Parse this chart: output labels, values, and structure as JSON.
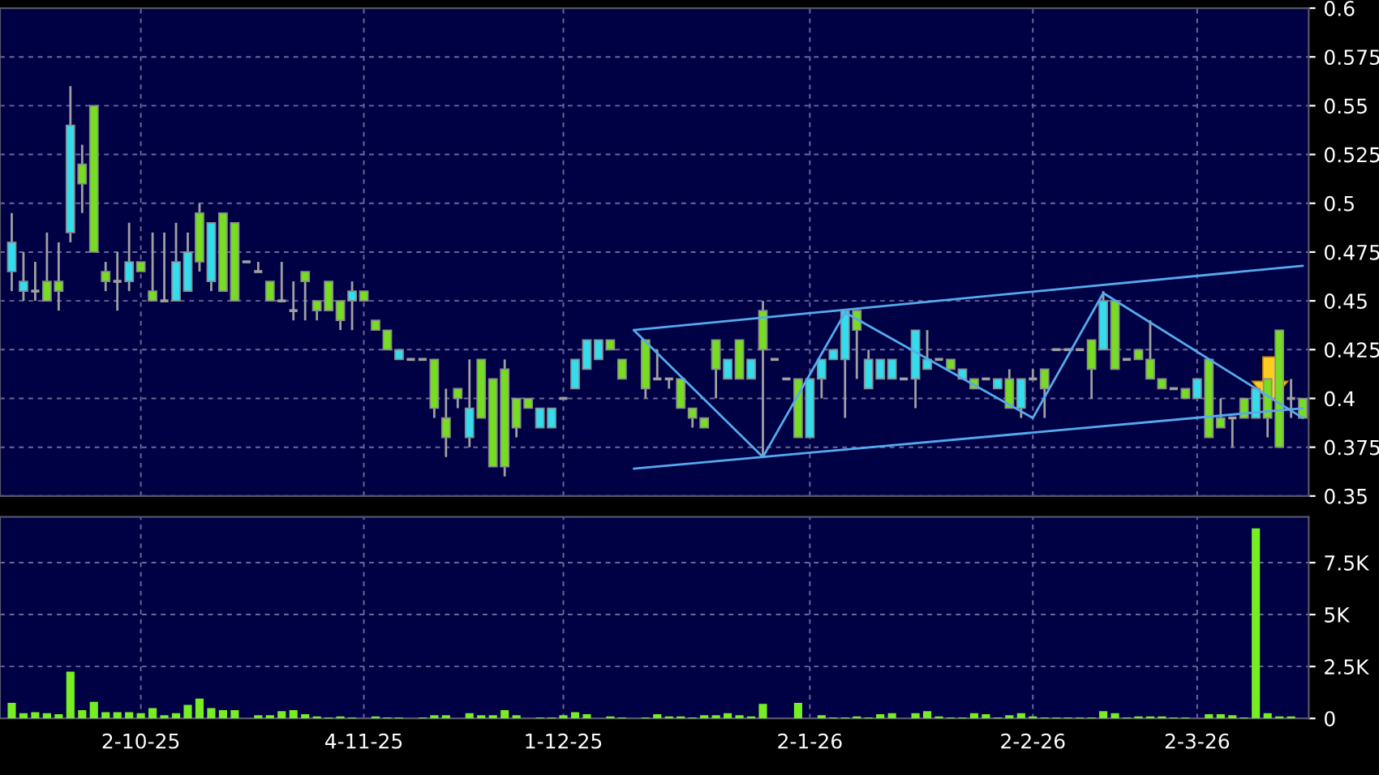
{
  "chart_data": [
    {
      "type": "candlestick",
      "categories": [
        null,
        null,
        null,
        null,
        null,
        null,
        null,
        null,
        null,
        null,
        null,
        null,
        null,
        null,
        null,
        null,
        null,
        null,
        null,
        null,
        null,
        null,
        null,
        null,
        null,
        null,
        null,
        null,
        null,
        null,
        null,
        null,
        null,
        null,
        null,
        null,
        null,
        null,
        null,
        null,
        null,
        null,
        null,
        null,
        null,
        null,
        null,
        null,
        null,
        null,
        null,
        null,
        null,
        null,
        null,
        null,
        null,
        null,
        null,
        null,
        null,
        null,
        null,
        null,
        null,
        null,
        null,
        null,
        null,
        null,
        null,
        null,
        null,
        null,
        null,
        null,
        null,
        null,
        null,
        null,
        null,
        null,
        null,
        null,
        null,
        null,
        null,
        null,
        null,
        null,
        null,
        null,
        null,
        null,
        null,
        null,
        null,
        null,
        null,
        null,
        null,
        null,
        null,
        null,
        null,
        null,
        null,
        null,
        null,
        null,
        null
      ],
      "ohlc": [
        [
          0.465,
          0.495,
          0.455,
          0.48
        ],
        [
          0.455,
          0.475,
          0.45,
          0.46
        ],
        [
          0.455,
          0.47,
          0.45,
          0.455
        ],
        [
          0.46,
          0.485,
          0.45,
          0.45
        ],
        [
          0.46,
          0.48,
          0.445,
          0.455
        ],
        [
          0.485,
          0.56,
          0.48,
          0.54
        ],
        [
          0.52,
          0.53,
          0.495,
          0.51
        ],
        [
          0.55,
          0.55,
          0.475,
          0.475
        ],
        [
          0.465,
          0.47,
          0.455,
          0.46
        ],
        [
          0.46,
          0.475,
          0.445,
          0.46
        ],
        [
          0.46,
          0.49,
          0.455,
          0.47
        ],
        [
          0.47,
          0.47,
          0.465,
          0.465
        ],
        [
          0.455,
          0.485,
          0.45,
          0.45
        ],
        [
          0.45,
          0.485,
          0.45,
          0.45
        ],
        [
          0.45,
          0.49,
          0.45,
          0.47
        ],
        [
          0.455,
          0.485,
          0.455,
          0.475
        ],
        [
          0.495,
          0.5,
          0.465,
          0.47
        ],
        [
          0.46,
          0.49,
          0.455,
          0.49
        ],
        [
          0.495,
          0.495,
          0.455,
          0.455
        ],
        [
          0.49,
          0.49,
          0.45,
          0.45
        ],
        [
          0.47,
          0.47,
          0.47,
          0.47
        ],
        [
          0.465,
          0.47,
          0.465,
          0.465
        ],
        [
          0.46,
          0.46,
          0.45,
          0.45
        ],
        [
          0.45,
          0.47,
          0.45,
          0.45
        ],
        [
          0.445,
          0.46,
          0.44,
          0.445
        ],
        [
          0.465,
          0.465,
          0.44,
          0.46
        ],
        [
          0.45,
          0.45,
          0.44,
          0.445
        ],
        [
          0.46,
          0.46,
          0.445,
          0.445
        ],
        [
          0.45,
          0.45,
          0.435,
          0.44
        ],
        [
          0.45,
          0.46,
          0.435,
          0.455
        ],
        [
          0.455,
          0.455,
          0.45,
          0.45
        ],
        [
          0.44,
          0.44,
          0.435,
          0.435
        ],
        [
          0.435,
          0.435,
          0.425,
          0.425
        ],
        [
          0.42,
          0.425,
          0.42,
          0.425
        ],
        [
          0.42,
          0.42,
          0.42,
          0.42
        ],
        [
          0.42,
          0.42,
          0.42,
          0.42
        ],
        [
          0.42,
          0.42,
          0.39,
          0.395
        ],
        [
          0.39,
          0.405,
          0.37,
          0.38
        ],
        [
          0.405,
          0.405,
          0.395,
          0.4
        ],
        [
          0.38,
          0.42,
          0.375,
          0.395
        ],
        [
          0.42,
          0.42,
          0.39,
          0.39
        ],
        [
          0.41,
          0.41,
          0.365,
          0.365
        ],
        [
          0.415,
          0.42,
          0.36,
          0.365
        ],
        [
          0.4,
          0.4,
          0.38,
          0.385
        ],
        [
          0.4,
          0.4,
          0.395,
          0.395
        ],
        [
          0.385,
          0.395,
          0.385,
          0.395
        ],
        [
          0.385,
          0.395,
          0.385,
          0.395
        ],
        [
          0.4,
          0.4,
          0.4,
          0.4
        ],
        [
          0.405,
          0.42,
          0.405,
          0.42
        ],
        [
          0.415,
          0.43,
          0.415,
          0.43
        ],
        [
          0.42,
          0.43,
          0.42,
          0.43
        ],
        [
          0.43,
          0.43,
          0.425,
          0.425
        ],
        [
          0.42,
          0.42,
          0.41,
          0.41
        ],
        null,
        [
          0.43,
          0.43,
          0.4,
          0.405
        ],
        [
          0.41,
          0.425,
          0.41,
          0.41
        ],
        [
          0.41,
          0.41,
          0.405,
          0.41
        ],
        [
          0.41,
          0.41,
          0.395,
          0.395
        ],
        [
          0.395,
          0.395,
          0.385,
          0.39
        ],
        [
          0.39,
          0.39,
          0.385,
          0.385
        ],
        [
          0.43,
          0.43,
          0.4,
          0.415
        ],
        [
          0.41,
          0.42,
          0.41,
          0.42
        ],
        [
          0.43,
          0.43,
          0.41,
          0.41
        ],
        [
          0.41,
          0.42,
          0.41,
          0.42
        ],
        [
          0.445,
          0.45,
          0.37,
          0.425
        ],
        [
          0.42,
          0.42,
          0.42,
          0.42
        ],
        [
          0.41,
          0.41,
          0.41,
          0.41
        ],
        [
          0.41,
          0.41,
          0.38,
          0.38
        ],
        [
          0.38,
          0.41,
          0.38,
          0.41
        ],
        [
          0.41,
          0.42,
          0.4,
          0.42
        ],
        [
          0.42,
          0.425,
          0.42,
          0.425
        ],
        [
          0.42,
          0.445,
          0.39,
          0.445
        ],
        [
          0.445,
          0.445,
          0.41,
          0.435
        ],
        [
          0.405,
          0.425,
          0.405,
          0.42
        ],
        [
          0.41,
          0.42,
          0.41,
          0.42
        ],
        [
          0.41,
          0.42,
          0.41,
          0.42
        ],
        [
          0.41,
          0.41,
          0.41,
          0.41
        ],
        [
          0.41,
          0.435,
          0.395,
          0.435
        ],
        [
          0.415,
          0.435,
          0.415,
          0.42
        ],
        [
          0.42,
          0.42,
          0.42,
          0.42
        ],
        [
          0.42,
          0.42,
          0.415,
          0.415
        ],
        [
          0.41,
          0.415,
          0.41,
          0.415
        ],
        [
          0.41,
          0.41,
          0.405,
          0.405
        ],
        [
          0.41,
          0.41,
          0.41,
          0.41
        ],
        [
          0.405,
          0.41,
          0.405,
          0.41
        ],
        [
          0.41,
          0.415,
          0.395,
          0.395
        ],
        [
          0.395,
          0.41,
          0.39,
          0.41
        ],
        [
          0.41,
          0.415,
          0.41,
          0.41
        ],
        [
          0.415,
          0.415,
          0.39,
          0.405
        ],
        [
          0.425,
          0.425,
          0.425,
          0.425
        ],
        [
          0.425,
          0.425,
          0.425,
          0.425
        ],
        [
          0.425,
          0.425,
          0.425,
          0.425
        ],
        [
          0.43,
          0.43,
          0.4,
          0.415
        ],
        [
          0.425,
          0.455,
          0.425,
          0.45
        ],
        [
          0.45,
          0.45,
          0.415,
          0.415
        ],
        [
          0.42,
          0.42,
          0.42,
          0.42
        ],
        [
          0.425,
          0.425,
          0.42,
          0.42
        ],
        [
          0.42,
          0.44,
          0.41,
          0.41
        ],
        [
          0.41,
          0.41,
          0.405,
          0.405
        ],
        [
          0.405,
          0.405,
          0.405,
          0.405
        ],
        [
          0.405,
          0.405,
          0.4,
          0.4
        ],
        [
          0.4,
          0.41,
          0.4,
          0.41
        ],
        [
          0.42,
          0.42,
          0.38,
          0.38
        ],
        [
          0.39,
          0.4,
          0.385,
          0.385
        ],
        [
          0.39,
          0.39,
          0.375,
          0.39
        ],
        [
          0.4,
          0.4,
          0.39,
          0.39
        ],
        [
          0.39,
          0.405,
          0.39,
          0.405
        ],
        [
          0.41,
          0.41,
          0.38,
          0.39
        ],
        [
          0.435,
          0.435,
          0.375,
          0.375
        ],
        [
          0.4,
          0.41,
          0.39,
          0.4
        ],
        [
          0.4,
          0.4,
          0.39,
          0.39
        ]
      ],
      "colors": [
        "#33ddee",
        "#33ddee",
        "#a0a0a0",
        "#77dd22",
        "#77dd22",
        "#33ddee",
        "#77dd22",
        "#77dd22",
        "#77dd22",
        "#a0a0a0",
        "#33ddee",
        "#77dd22",
        "#77dd22",
        "#a0a0a0",
        "#33ddee",
        "#33ddee",
        "#77dd22",
        "#33ddee",
        "#77dd22",
        "#77dd22",
        "#a0a0a0",
        "#a0a0a0",
        "#77dd22",
        "#a0a0a0",
        "#a0a0a0",
        "#77dd22",
        "#77dd22",
        "#77dd22",
        "#77dd22",
        "#33ddee",
        "#77dd22",
        "#77dd22",
        "#77dd22",
        "#33ddee",
        "#a0a0a0",
        "#a0a0a0",
        "#77dd22",
        "#77dd22",
        "#77dd22",
        "#33ddee",
        "#77dd22",
        "#77dd22",
        "#77dd22",
        "#77dd22",
        "#77dd22",
        "#33ddee",
        "#33ddee",
        "#a0a0a0",
        "#33ddee",
        "#33ddee",
        "#33ddee",
        "#77dd22",
        "#77dd22",
        null,
        "#77dd22",
        "#a0a0a0",
        "#a0a0a0",
        "#77dd22",
        "#77dd22",
        "#77dd22",
        "#77dd22",
        "#33ddee",
        "#77dd22",
        "#33ddee",
        "#77dd22",
        "#a0a0a0",
        "#a0a0a0",
        "#77dd22",
        "#33ddee",
        "#33ddee",
        "#33ddee",
        "#33ddee",
        "#77dd22",
        "#33ddee",
        "#33ddee",
        "#33ddee",
        "#a0a0a0",
        "#33ddee",
        "#33ddee",
        "#a0a0a0",
        "#77dd22",
        "#33ddee",
        "#77dd22",
        "#a0a0a0",
        "#33ddee",
        "#77dd22",
        "#33ddee",
        "#a0a0a0",
        "#77dd22",
        "#a0a0a0",
        "#a0a0a0",
        "#a0a0a0",
        "#77dd22",
        "#33ddee",
        "#77dd22",
        "#a0a0a0",
        "#77dd22",
        "#77dd22",
        "#77dd22",
        "#a0a0a0",
        "#77dd22",
        "#33ddee",
        "#77dd22",
        "#77dd22",
        "#a0a0a0",
        "#77dd22",
        "#33ddee",
        "#77dd22",
        "#77dd22",
        "#a0a0a0",
        "#77dd22"
      ],
      "series": [
        {
          "type": "line",
          "values": [
            null,
            null,
            null,
            null,
            null,
            null,
            null,
            null,
            null,
            null,
            null,
            null,
            null,
            null,
            null,
            null,
            null,
            null,
            null,
            null,
            null,
            null,
            null,
            null,
            null,
            null,
            null,
            null,
            null,
            null,
            null,
            null,
            null,
            null,
            null,
            null,
            null,
            null,
            null,
            null,
            null,
            null,
            null,
            null,
            null,
            null,
            null,
            null,
            null,
            null,
            null,
            null,
            null,
            0.435,
            null,
            null,
            null,
            null,
            null,
            null,
            null,
            null,
            null,
            null,
            null,
            null,
            null,
            null,
            null,
            null,
            null,
            null,
            null,
            null,
            null,
            null,
            null,
            null,
            null,
            null,
            null,
            null,
            null,
            null,
            null,
            null,
            null,
            null,
            null,
            null,
            null,
            null,
            null,
            null,
            null,
            null,
            null,
            null,
            null,
            null,
            null,
            null,
            null,
            null,
            null,
            null,
            null,
            null,
            null,
            null,
            0.468
          ],
          "color": "#55aaee"
        },
        {
          "type": "line",
          "values": [
            null,
            null,
            null,
            null,
            null,
            null,
            null,
            null,
            null,
            null,
            null,
            null,
            null,
            null,
            null,
            null,
            null,
            null,
            null,
            null,
            null,
            null,
            null,
            null,
            null,
            null,
            null,
            null,
            null,
            null,
            null,
            null,
            null,
            null,
            null,
            null,
            null,
            null,
            null,
            null,
            null,
            null,
            null,
            null,
            null,
            null,
            null,
            null,
            null,
            null,
            null,
            null,
            null,
            0.364,
            null,
            null,
            null,
            null,
            null,
            null,
            null,
            null,
            null,
            null,
            null,
            null,
            null,
            null,
            null,
            null,
            null,
            null,
            null,
            null,
            null,
            null,
            null,
            null,
            null,
            null,
            null,
            null,
            null,
            null,
            null,
            null,
            null,
            null,
            null,
            null,
            null,
            null,
            null,
            null,
            null,
            null,
            null,
            null,
            null,
            null,
            null,
            null,
            null,
            null,
            null,
            null,
            null,
            null,
            null,
            null,
            0.395
          ],
          "color": "#55aaee"
        },
        {
          "type": "line",
          "values": [
            null,
            null,
            null,
            null,
            null,
            null,
            null,
            null,
            null,
            null,
            null,
            null,
            null,
            null,
            null,
            null,
            null,
            null,
            null,
            null,
            null,
            null,
            null,
            null,
            null,
            null,
            null,
            null,
            null,
            null,
            null,
            null,
            null,
            null,
            null,
            null,
            null,
            null,
            null,
            null,
            null,
            null,
            null,
            null,
            null,
            null,
            null,
            null,
            null,
            null,
            null,
            null,
            null,
            0.435,
            null,
            null,
            null,
            null,
            null,
            null,
            null,
            null,
            null,
            null,
            0.37,
            null,
            null,
            null,
            null,
            null,
            null,
            0.444,
            null,
            null,
            null,
            null,
            null,
            null,
            null,
            null,
            null,
            null,
            null,
            null,
            null,
            null,
            null,
            0.39,
            null,
            null,
            null,
            null,
            null,
            0.454,
            null,
            null,
            null,
            null,
            null,
            null,
            null,
            null,
            null,
            null,
            null,
            null,
            null,
            null,
            null,
            null,
            0.39
          ],
          "color": "#55aaee"
        }
      ],
      "ylim": [
        0.35,
        0.6
      ],
      "yticks": [
        0.35,
        0.375,
        0.4,
        0.425,
        0.45,
        0.475,
        0.5,
        0.525,
        0.55,
        0.575,
        0.6
      ],
      "grid": true,
      "tick_labels": "y"
    },
    {
      "type": "bar",
      "categories": [
        null,
        null,
        null,
        null,
        null,
        null,
        null,
        null,
        null,
        null,
        null,
        "2-10-25",
        null,
        null,
        null,
        null,
        null,
        null,
        null,
        null,
        null,
        null,
        null,
        null,
        null,
        null,
        null,
        null,
        null,
        null,
        "4-11-25",
        null,
        null,
        null,
        null,
        null,
        null,
        null,
        null,
        null,
        null,
        null,
        null,
        null,
        null,
        null,
        null,
        "1-12-25",
        null,
        null,
        null,
        null,
        null,
        null,
        null,
        null,
        null,
        null,
        null,
        null,
        null,
        null,
        null,
        null,
        null,
        null,
        null,
        null,
        "2-1-26",
        null,
        null,
        null,
        null,
        null,
        null,
        null,
        null,
        null,
        null,
        null,
        null,
        null,
        null,
        null,
        null,
        null,
        null,
        "2-2-26",
        null,
        null,
        null,
        null,
        null,
        null,
        null,
        null,
        null,
        null,
        null,
        null,
        null,
        "2-3-26",
        null,
        null,
        null,
        null,
        null,
        null,
        null,
        null,
        null
      ],
      "values": [
        750,
        250,
        300,
        250,
        200,
        2250,
        400,
        800,
        300,
        300,
        300,
        250,
        500,
        150,
        250,
        650,
        950,
        500,
        400,
        400,
        0,
        150,
        150,
        350,
        400,
        200,
        100,
        50,
        100,
        50,
        0,
        100,
        50,
        50,
        0,
        50,
        150,
        150,
        0,
        250,
        150,
        150,
        400,
        150,
        0,
        50,
        50,
        150,
        300,
        200,
        0,
        100,
        50,
        0,
        50,
        200,
        100,
        100,
        50,
        150,
        150,
        250,
        150,
        100,
        700,
        0,
        0,
        750,
        0,
        150,
        50,
        50,
        100,
        50,
        200,
        250,
        0,
        250,
        350,
        100,
        50,
        50,
        250,
        200,
        50,
        150,
        250,
        100,
        50,
        50,
        50,
        50,
        50,
        350,
        250,
        50,
        100,
        100,
        100,
        50,
        50,
        0,
        200,
        200,
        150,
        50,
        9150,
        250,
        100,
        100,
        0
      ],
      "color": "#77ee22",
      "ylim": [
        0,
        9700
      ],
      "yticks": [
        0,
        {
          "value": 2500,
          "label": "2.5K"
        },
        {
          "value": 5000,
          "label": "5K"
        },
        {
          "value": 7500,
          "label": "7.5K"
        }
      ],
      "grid": true
    }
  ]
}
